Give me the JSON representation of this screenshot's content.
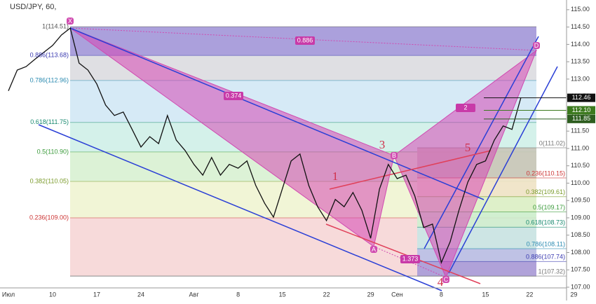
{
  "chart_data": {
    "type": "line",
    "title": "USD/JPY, 60,",
    "categories": [
      "Июл",
      null,
      null,
      null,
      null,
      "10",
      null,
      null,
      null,
      null,
      "17",
      null,
      null,
      null,
      null,
      "24",
      null,
      null,
      null,
      null,
      null,
      "Авг",
      null,
      null,
      null,
      null,
      "8",
      null,
      null,
      null,
      null,
      "15",
      null,
      null,
      null,
      null,
      "22",
      null,
      null,
      null,
      null,
      "29",
      null,
      null,
      "Сен",
      null,
      null,
      null,
      null,
      "8",
      null,
      null,
      null,
      null,
      "15",
      null,
      null,
      null,
      null,
      "22",
      null,
      null,
      null,
      null,
      "29"
    ],
    "series": [
      {
        "color": "#111111",
        "values": [
          112.66,
          113.26,
          113.36,
          113.57,
          113.77,
          113.97,
          114.27,
          114.47,
          113.46,
          113.26,
          112.86,
          112.25,
          111.95,
          112.05,
          111.55,
          111.04,
          111.34,
          111.14,
          111.95,
          111.24,
          110.94,
          110.54,
          110.23,
          110.74,
          110.23,
          110.54,
          110.43,
          110.64,
          109.93,
          109.42,
          109.02,
          109.83,
          110.64,
          110.84,
          109.93,
          109.32,
          108.92,
          109.53,
          109.32,
          109.73,
          109.22,
          108.41,
          109.83,
          110.54,
          110.13,
          110.23,
          109.63,
          108.72,
          108.82,
          107.71,
          108.31,
          109.22,
          110.03,
          110.54,
          110.64,
          111.24,
          111.65,
          111.55,
          112.46,
          null,
          null,
          null,
          null,
          null,
          null
        ]
      }
    ],
    "ylim": [
      107,
      115.28
    ],
    "yticks": [
      {
        "value": 107,
        "label": "107.00"
      },
      {
        "value": 107.5,
        "label": "107.50"
      },
      {
        "value": 108,
        "label": "108.00"
      },
      {
        "value": 108.5,
        "label": "108.50"
      },
      {
        "value": 109,
        "label": "109.00"
      },
      {
        "value": 109.5,
        "label": "109.50"
      },
      {
        "value": 110,
        "label": "110.00"
      },
      {
        "value": 110.5,
        "label": "110.50"
      },
      {
        "value": 111,
        "label": "111.00"
      },
      {
        "value": 111.5,
        "label": "111.50"
      },
      {
        "value": 112,
        "label": "112.00"
      },
      {
        "value": 112.5,
        "label": "112.50"
      },
      {
        "value": 113,
        "label": "113.00"
      },
      {
        "value": 113.5,
        "label": "113.50"
      },
      {
        "value": 114,
        "label": "114.00"
      },
      {
        "value": 114.5,
        "label": "114.50"
      },
      {
        "value": 115,
        "label": "115.00"
      }
    ],
    "fib_left": [
      {
        "value": 114.51,
        "label": "1(114.51)",
        "color": "#9c8fd6",
        "text_color": "#555"
      },
      {
        "value": 113.68,
        "label": "0.886(113.68)",
        "color": "#d9d9de",
        "text_color": "#3a3ab0"
      },
      {
        "value": 112.96,
        "label": "0.786(112.96)",
        "color": "#cfe6f5",
        "text_color": "#2a8ab0"
      },
      {
        "value": 111.75,
        "label": "0.618(111.75)",
        "color": "#cdeee6",
        "text_color": "#1a8a70"
      },
      {
        "value": 110.9,
        "label": "0.5(110.90)",
        "color": "#d6f0cf",
        "text_color": "#3a9a3a"
      },
      {
        "value": 110.05,
        "label": "0.382(110.05)",
        "color": "#eef3cf",
        "text_color": "#7a9a2a"
      },
      {
        "value": 109.0,
        "label": "0.236(109.00)",
        "color": "#f6d3d3",
        "text_color": "#c33"
      }
    ],
    "fib_right": [
      {
        "value": 111.02,
        "label": "0(111.02)",
        "color": "#c9c5b9",
        "text_color": "#777"
      },
      {
        "value": 110.15,
        "label": "0.236(110.15)",
        "color": "#efe3c9",
        "text_color": "#c33"
      },
      {
        "value": 109.61,
        "label": "0.382(109.61)",
        "color": "#dcefc8",
        "text_color": "#7a9a2a"
      },
      {
        "value": 109.17,
        "label": "0.5(109.17)",
        "color": "#cdeecf",
        "text_color": "#3a9a3a"
      },
      {
        "value": 108.73,
        "label": "0.618(108.73)",
        "color": "#c8e6e4",
        "text_color": "#1a8a70"
      },
      {
        "value": 108.11,
        "label": "0.786(108.11)",
        "color": "#b8bfe6",
        "text_color": "#2a8ab0"
      },
      {
        "value": 107.74,
        "label": "0.886(107.74)",
        "color": "#a79bd8",
        "text_color": "#3a3ab0"
      },
      {
        "value": 107.32,
        "label": "1(107.32)",
        "color": "#a79bd8",
        "text_color": "#777"
      }
    ],
    "pattern_points": [
      "X",
      "A",
      "B",
      "C",
      "D"
    ],
    "pattern_ratios": [
      "0.886",
      "0.374",
      "1.373",
      "2"
    ],
    "waves": [
      "1",
      "3",
      "4",
      "5"
    ],
    "price_labels": [
      {
        "value": 112.46,
        "label": "112.46",
        "color": "#111"
      },
      {
        "value": 112.1,
        "label": "112.10",
        "color": "#3c7a1e"
      },
      {
        "value": 111.85,
        "label": "111.85",
        "color": "#2e5e20"
      }
    ]
  }
}
